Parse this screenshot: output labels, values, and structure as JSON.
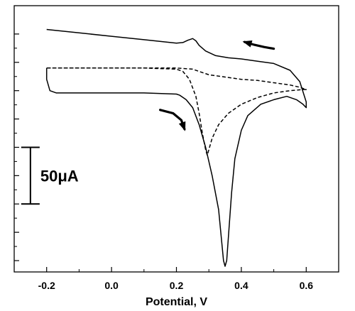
{
  "chart_data": {
    "type": "line",
    "title": "",
    "xlabel": "Potential, V",
    "ylabel": "",
    "xlim": [
      -0.3,
      0.7
    ],
    "ylim": [
      -160,
      75
    ],
    "x_ticks": [
      -0.2,
      0.0,
      0.2,
      0.4,
      0.6
    ],
    "x_tick_labels": [
      "-0.2",
      "0.0",
      "0.2",
      "0.4",
      "0.6"
    ],
    "y_ticks": [
      -150,
      -125,
      -100,
      -75,
      -50,
      -25,
      0,
      25,
      50
    ],
    "y_tick_labels_shown": false,
    "grid": false,
    "legend": "none",
    "scale_bar": {
      "label": "50μA",
      "value": 50,
      "y_from": -50,
      "y_to": -100,
      "x": -0.25
    },
    "series": [
      {
        "style": "solid",
        "color": "#000000",
        "x": [
          -0.2,
          -0.1,
          0.0,
          0.1,
          0.2,
          0.22,
          0.235,
          0.25,
          0.26,
          0.27,
          0.29,
          0.32,
          0.36,
          0.4,
          0.45,
          0.5,
          0.55,
          0.58,
          0.6,
          0.6,
          0.59,
          0.57,
          0.54,
          0.5,
          0.46,
          0.42,
          0.4,
          0.38,
          0.37,
          0.36,
          0.355,
          0.35,
          0.345,
          0.34,
          0.33,
          0.31,
          0.29,
          0.27,
          0.25,
          0.23,
          0.21,
          0.2,
          0.1,
          0.0,
          -0.1,
          -0.17,
          -0.19,
          -0.2,
          -0.2
        ],
        "y": [
          54,
          51,
          48,
          45,
          42,
          42.5,
          44.5,
          46,
          44,
          40,
          35,
          31,
          29,
          28,
          26,
          24,
          18,
          8,
          -10,
          -15,
          -12,
          -8,
          -5,
          -8,
          -12,
          -22,
          -35,
          -60,
          -90,
          -130,
          -150,
          -155,
          -150,
          -135,
          -105,
          -75,
          -50,
          -30,
          -15,
          -8,
          -4,
          -3,
          -2,
          -2,
          -2,
          -2,
          0,
          10,
          20
        ]
      },
      {
        "style": "dashed",
        "color": "#000000",
        "x": [
          -0.2,
          -0.1,
          0.0,
          0.1,
          0.2,
          0.22,
          0.24,
          0.26,
          0.27,
          0.28,
          0.29,
          0.295,
          0.3,
          0.31,
          0.33,
          0.36,
          0.4,
          0.45,
          0.5,
          0.55,
          0.59,
          0.6,
          0.58,
          0.55,
          0.5,
          0.45,
          0.4,
          0.35,
          0.3,
          0.27,
          0.25,
          0.2,
          0.1,
          0.0,
          -0.1,
          -0.2
        ],
        "y": [
          20,
          20,
          20,
          20,
          19,
          17,
          10,
          -5,
          -20,
          -38,
          -52,
          -57,
          -52,
          -42,
          -30,
          -20,
          -12,
          -6,
          -2,
          0,
          1,
          1,
          3,
          5,
          7,
          9,
          10,
          12,
          14,
          17,
          19,
          20,
          20,
          20,
          20,
          20
        ]
      }
    ],
    "direction_arrows": [
      {
        "x": [
          0.5,
          0.47,
          0.44,
          0.41
        ],
        "y": [
          37,
          38.5,
          40.5,
          43
        ]
      },
      {
        "x": [
          0.15,
          0.19,
          0.215,
          0.225
        ],
        "y": [
          -17,
          -20,
          -26,
          -34
        ]
      }
    ]
  }
}
